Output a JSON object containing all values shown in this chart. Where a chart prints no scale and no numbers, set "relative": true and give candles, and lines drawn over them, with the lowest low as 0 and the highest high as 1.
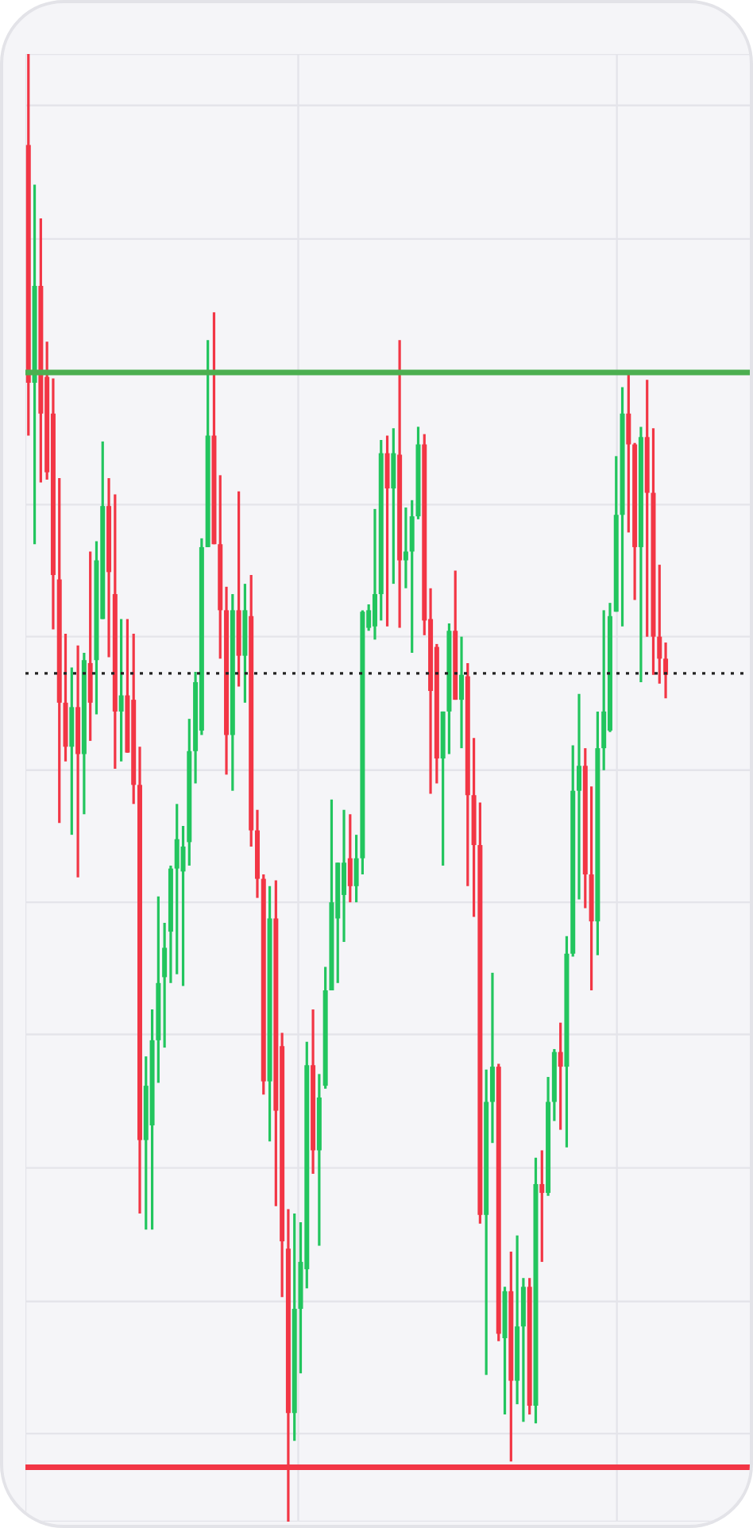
{
  "chart_data": {
    "type": "candlestick",
    "relative": true,
    "grid": true,
    "categories": [
      null,
      null,
      null,
      null,
      null,
      null,
      null,
      null,
      null,
      null,
      null,
      null,
      null,
      null,
      null,
      null,
      null,
      null,
      null,
      null,
      null,
      null,
      null,
      null,
      null,
      null,
      null,
      null,
      null,
      null,
      null,
      null,
      null,
      null,
      null,
      null,
      null,
      null,
      null,
      null,
      null,
      null,
      null,
      null,
      null,
      null,
      null,
      null,
      null,
      null,
      null,
      null,
      null,
      null,
      null,
      null,
      null,
      null,
      null,
      null,
      null,
      null,
      null,
      null,
      null,
      null,
      null,
      null,
      null,
      null,
      null,
      null,
      null,
      null,
      null,
      null,
      null,
      null,
      null,
      null,
      null,
      null,
      null,
      null,
      null,
      null,
      null,
      null,
      null,
      null,
      null,
      null,
      null,
      null,
      null,
      null,
      null,
      null,
      null,
      null,
      null,
      null,
      null,
      null
    ],
    "ohlc": [
      [
        0.938,
        1.0,
        0.74,
        0.776
      ],
      [
        0.776,
        0.911,
        0.666,
        0.842
      ],
      [
        0.842,
        0.888,
        0.708,
        0.755
      ],
      [
        0.78,
        0.804,
        0.71,
        0.715
      ],
      [
        0.755,
        0.779,
        0.608,
        0.645
      ],
      [
        0.642,
        0.711,
        0.476,
        0.558
      ],
      [
        0.558,
        0.605,
        0.518,
        0.528
      ],
      [
        0.528,
        0.582,
        0.468,
        0.555
      ],
      [
        0.555,
        0.597,
        0.439,
        0.523
      ],
      [
        0.523,
        0.592,
        0.482,
        0.587
      ],
      [
        0.585,
        0.661,
        0.532,
        0.558
      ],
      [
        0.587,
        0.668,
        0.55,
        0.655
      ],
      [
        0.615,
        0.736,
        0.615,
        0.692
      ],
      [
        0.692,
        0.711,
        0.589,
        0.647
      ],
      [
        0.632,
        0.7,
        0.513,
        0.552
      ],
      [
        0.552,
        0.615,
        0.518,
        0.563
      ],
      [
        0.563,
        0.615,
        0.524,
        0.524
      ],
      [
        0.56,
        0.605,
        0.489,
        0.502
      ],
      [
        0.502,
        0.528,
        0.21,
        0.26
      ],
      [
        0.26,
        0.317,
        0.199,
        0.297
      ],
      [
        0.27,
        0.349,
        0.199,
        0.328
      ],
      [
        0.328,
        0.426,
        0.299,
        0.367
      ],
      [
        0.371,
        0.408,
        0.323,
        0.391
      ],
      [
        0.402,
        0.447,
        0.367,
        0.445
      ],
      [
        0.445,
        0.489,
        0.373,
        0.465
      ],
      [
        0.443,
        0.474,
        0.365,
        0.46
      ],
      [
        0.463,
        0.547,
        0.447,
        0.525
      ],
      [
        0.525,
        0.579,
        0.503,
        0.572
      ],
      [
        0.539,
        0.67,
        0.536,
        0.664
      ],
      [
        0.664,
        0.805,
        0.664,
        0.74
      ],
      [
        0.74,
        0.824,
        0.666,
        0.666
      ],
      [
        0.666,
        0.713,
        0.588,
        0.621
      ],
      [
        0.621,
        0.637,
        0.509,
        0.536
      ],
      [
        0.536,
        0.632,
        0.498,
        0.621
      ],
      [
        0.621,
        0.702,
        0.569,
        0.59
      ],
      [
        0.59,
        0.639,
        0.558,
        0.621
      ],
      [
        0.617,
        0.645,
        0.46,
        0.471
      ],
      [
        0.471,
        0.485,
        0.425,
        0.438
      ],
      [
        0.438,
        0.441,
        0.291,
        0.3
      ],
      [
        0.3,
        0.433,
        0.259,
        0.411
      ],
      [
        0.411,
        0.437,
        0.215,
        0.28
      ],
      [
        0.324,
        0.333,
        0.153,
        0.191
      ],
      [
        0.186,
        0.213,
        0.0,
        0.074
      ],
      [
        0.074,
        0.21,
        0.055,
        0.145
      ],
      [
        0.145,
        0.204,
        0.101,
        0.177
      ],
      [
        0.172,
        0.327,
        0.159,
        0.311
      ],
      [
        0.311,
        0.349,
        0.237,
        0.253
      ],
      [
        0.253,
        0.305,
        0.188,
        0.289
      ],
      [
        0.297,
        0.378,
        0.295,
        0.362
      ],
      [
        0.362,
        0.492,
        0.362,
        0.422
      ],
      [
        0.411,
        0.449,
        0.367,
        0.449
      ],
      [
        0.427,
        0.485,
        0.395,
        0.449
      ],
      [
        0.452,
        0.482,
        0.422,
        0.433
      ],
      [
        0.433,
        0.468,
        0.422,
        0.452
      ],
      [
        0.452,
        0.621,
        0.441,
        0.62
      ],
      [
        0.609,
        0.625,
        0.607,
        0.621
      ],
      [
        0.61,
        0.69,
        0.601,
        0.632
      ],
      [
        0.632,
        0.737,
        0.614,
        0.728
      ],
      [
        0.728,
        0.74,
        0.61,
        0.704
      ],
      [
        0.704,
        0.745,
        0.639,
        0.728
      ],
      [
        0.727,
        0.805,
        0.609,
        0.655
      ],
      [
        0.655,
        0.691,
        0.636,
        0.661
      ],
      [
        0.661,
        0.696,
        0.592,
        0.685
      ],
      [
        0.685,
        0.746,
        0.683,
        0.734
      ],
      [
        0.734,
        0.741,
        0.604,
        0.614
      ],
      [
        0.615,
        0.636,
        0.496,
        0.566
      ],
      [
        0.596,
        0.598,
        0.503,
        0.52
      ],
      [
        0.52,
        0.552,
        0.447,
        0.552
      ],
      [
        0.552,
        0.612,
        0.523,
        0.607
      ],
      [
        0.607,
        0.648,
        0.56,
        0.56
      ],
      [
        0.56,
        0.603,
        0.527,
        0.577
      ],
      [
        0.576,
        0.585,
        0.433,
        0.495
      ],
      [
        0.495,
        0.534,
        0.412,
        0.461
      ],
      [
        0.461,
        0.49,
        0.203,
        0.209
      ],
      [
        0.209,
        0.308,
        0.1,
        0.286
      ],
      [
        0.286,
        0.374,
        0.258,
        0.31
      ],
      [
        0.31,
        0.312,
        0.123,
        0.128
      ],
      [
        0.125,
        0.16,
        0.073,
        0.157
      ],
      [
        0.157,
        0.184,
        0.041,
        0.096
      ],
      [
        0.096,
        0.195,
        0.08,
        0.133
      ],
      [
        0.133,
        0.166,
        0.068,
        0.16
      ],
      [
        0.16,
        0.166,
        0.073,
        0.079
      ],
      [
        0.079,
        0.248,
        0.067,
        0.23
      ],
      [
        0.23,
        0.253,
        0.177,
        0.224
      ],
      [
        0.224,
        0.303,
        0.222,
        0.286
      ],
      [
        0.286,
        0.322,
        0.273,
        0.32
      ],
      [
        0.32,
        0.34,
        0.267,
        0.31
      ],
      [
        0.31,
        0.399,
        0.255,
        0.387
      ],
      [
        0.387,
        0.529,
        0.385,
        0.498
      ],
      [
        0.498,
        0.564,
        0.424,
        0.515
      ],
      [
        0.515,
        0.527,
        0.418,
        0.441
      ],
      [
        0.441,
        0.501,
        0.362,
        0.409
      ],
      [
        0.409,
        0.552,
        0.386,
        0.527
      ],
      [
        0.527,
        0.621,
        0.512,
        0.552
      ],
      [
        0.539,
        0.626,
        0.538,
        0.617
      ],
      [
        0.62,
        0.726,
        0.62,
        0.686
      ],
      [
        0.686,
        0.773,
        0.61,
        0.755
      ],
      [
        0.755,
        0.784,
        0.674,
        0.734
      ],
      [
        0.734,
        0.735,
        0.628,
        0.664
      ],
      [
        0.664,
        0.746,
        0.572,
        0.739
      ],
      [
        0.739,
        0.778,
        0.603,
        0.701
      ],
      [
        0.701,
        0.745,
        0.577,
        0.603
      ],
      [
        0.603,
        0.652,
        0.571,
        0.588
      ],
      [
        0.588,
        0.599,
        0.561,
        0.577
      ]
    ],
    "colors": [
      "#f23645",
      "#22c55e",
      "#f23645",
      "#f23645",
      "#f23645",
      "#f23645",
      "#f23645",
      "#22c55e",
      "#f23645",
      "#22c55e",
      "#f23645",
      "#22c55e",
      "#22c55e",
      "#f23645",
      "#f23645",
      "#22c55e",
      "#f23645",
      "#f23645",
      "#f23645",
      "#22c55e",
      "#22c55e",
      "#22c55e",
      "#22c55e",
      "#22c55e",
      "#22c55e",
      "#22c55e",
      "#22c55e",
      "#22c55e",
      "#22c55e",
      "#22c55e",
      "#f23645",
      "#f23645",
      "#f23645",
      "#22c55e",
      "#f23645",
      "#22c55e",
      "#f23645",
      "#f23645",
      "#f23645",
      "#22c55e",
      "#f23645",
      "#f23645",
      "#f23645",
      "#22c55e",
      "#22c55e",
      "#22c55e",
      "#f23645",
      "#22c55e",
      "#22c55e",
      "#22c55e",
      "#22c55e",
      "#22c55e",
      "#f23645",
      "#22c55e",
      "#22c55e",
      "#22c55e",
      "#22c55e",
      "#22c55e",
      "#f23645",
      "#22c55e",
      "#f23645",
      "#22c55e",
      "#22c55e",
      "#22c55e",
      "#f23645",
      "#f23645",
      "#f23645",
      "#22c55e",
      "#22c55e",
      "#f23645",
      "#22c55e",
      "#f23645",
      "#f23645",
      "#f23645",
      "#22c55e",
      "#22c55e",
      "#f23645",
      "#22c55e",
      "#f23645",
      "#22c55e",
      "#22c55e",
      "#f23645",
      "#22c55e",
      "#f23645",
      "#22c55e",
      "#22c55e",
      "#f23645",
      "#22c55e",
      "#22c55e",
      "#22c55e",
      "#f23645",
      "#f23645",
      "#22c55e",
      "#22c55e",
      "#22c55e",
      "#22c55e",
      "#22c55e",
      "#f23645",
      "#f23645",
      "#22c55e",
      "#f23645",
      "#f23645",
      "#f23645",
      "#f23645"
    ],
    "ref_lines": [
      {
        "axis": "y",
        "value": 0.783,
        "color": "#4caf50",
        "line_style": "solid"
      },
      {
        "axis": "y",
        "value": 0.578,
        "color": "#222222",
        "line_style": "dotted"
      },
      {
        "axis": "y",
        "value": 0.037,
        "color": "#f23645",
        "line_style": "solid"
      }
    ]
  }
}
